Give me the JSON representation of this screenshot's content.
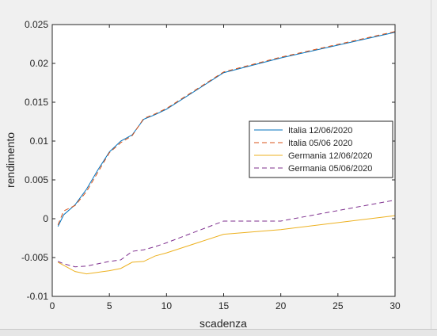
{
  "chart_data": {
    "type": "line",
    "title": "",
    "xlabel": "scadenza",
    "ylabel": "rendimento",
    "xlim": [
      0,
      30
    ],
    "ylim": [
      -0.01,
      0.025
    ],
    "xticks": [
      0,
      5,
      10,
      15,
      20,
      25,
      30
    ],
    "xtick_labels": [
      "0",
      "5",
      "10",
      "15",
      "20",
      "25",
      "30"
    ],
    "yticks": [
      -0.01,
      -0.005,
      0,
      0.005,
      0.01,
      0.015,
      0.02,
      0.025
    ],
    "ytick_labels": [
      "-0.01",
      "-0.005",
      "0",
      "0.005",
      "0.01",
      "0.015",
      "0.02",
      "0.025"
    ],
    "grid": false,
    "legend_position": "center-right",
    "series": [
      {
        "name": "Italia 12/06/2020",
        "color": "#0072bd",
        "dash": "solid",
        "x": [
          0.5,
          1,
          2,
          3,
          4,
          5,
          6,
          7,
          8,
          9,
          10,
          15,
          20,
          30
        ],
        "y": [
          -0.001,
          0.0005,
          0.0018,
          0.0038,
          0.0063,
          0.0086,
          0.01,
          0.0108,
          0.0128,
          0.0134,
          0.0141,
          0.0188,
          0.0207,
          0.024
        ]
      },
      {
        "name": "Italia 05/06 2020",
        "color": "#d95319",
        "dash": "dashed",
        "x": [
          0.5,
          1,
          2,
          3,
          4,
          5,
          6,
          7,
          8,
          9,
          10,
          15,
          20,
          30
        ],
        "y": [
          -0.0008,
          0.001,
          0.0017,
          0.0035,
          0.006,
          0.0085,
          0.0098,
          0.0107,
          0.0129,
          0.0135,
          0.0142,
          0.0189,
          0.0208,
          0.0241
        ]
      },
      {
        "name": "Germania 12/06/2020",
        "color": "#edb120",
        "dash": "solid",
        "x": [
          0.5,
          1,
          2,
          3,
          4,
          5,
          6,
          7,
          8,
          9,
          10,
          15,
          20,
          30
        ],
        "y": [
          -0.0056,
          -0.006,
          -0.0068,
          -0.0071,
          -0.0069,
          -0.0067,
          -0.0064,
          -0.0056,
          -0.0055,
          -0.0048,
          -0.0044,
          -0.002,
          -0.0014,
          0.0004
        ]
      },
      {
        "name": "Germania 05/06/2020",
        "color": "#7e2f8e",
        "dash": "dashed",
        "x": [
          0.5,
          1,
          2,
          3,
          4,
          5,
          6,
          7,
          8,
          9,
          10,
          15,
          20,
          30
        ],
        "y": [
          -0.0055,
          -0.0058,
          -0.0062,
          -0.0061,
          -0.0058,
          -0.0055,
          -0.0053,
          -0.0042,
          -0.004,
          -0.0036,
          -0.0031,
          -0.0003,
          -0.0003,
          0.0024
        ]
      }
    ]
  }
}
